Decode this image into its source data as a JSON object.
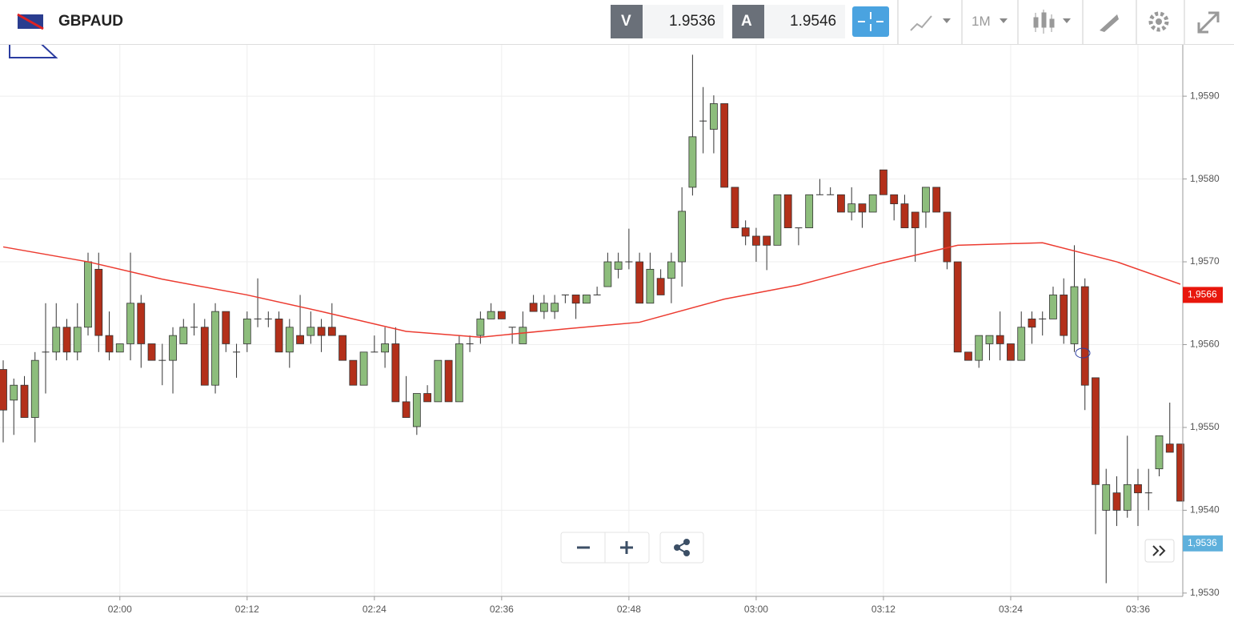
{
  "header": {
    "symbol": "GBPAUD",
    "bid_label": "V",
    "bid": "1.9536",
    "ask_label": "A",
    "ask": "1.9546",
    "interval": "1M"
  },
  "chart_data": {
    "type": "candlestick",
    "x": [
      "01:49",
      "01:50",
      "01:51",
      "01:52",
      "01:53",
      "01:54",
      "01:55",
      "01:56",
      "01:57",
      "01:58",
      "01:59",
      "02:00",
      "02:01",
      "02:02",
      "02:03",
      "02:04",
      "02:05",
      "02:06",
      "02:07",
      "02:08",
      "02:09",
      "02:10",
      "02:11",
      "02:12",
      "02:13",
      "02:14",
      "02:15",
      "02:16",
      "02:17",
      "02:18",
      "02:19",
      "02:20",
      "02:21",
      "02:22",
      "02:23",
      "02:24",
      "02:25",
      "02:26",
      "02:27",
      "02:28",
      "02:29",
      "02:30",
      "02:31",
      "02:32",
      "02:33",
      "02:34",
      "02:35",
      "02:36",
      "02:37",
      "02:38",
      "02:39",
      "02:40",
      "02:41",
      "02:42",
      "02:43",
      "02:44",
      "02:45",
      "02:46",
      "02:47",
      "02:48",
      "02:49",
      "02:50",
      "02:51",
      "02:52",
      "02:53",
      "02:54",
      "02:55",
      "02:56",
      "02:57",
      "02:58",
      "02:59",
      "03:00",
      "03:01",
      "03:02",
      "03:03",
      "03:04",
      "03:05",
      "03:06",
      "03:07",
      "03:08",
      "03:09",
      "03:10",
      "03:11",
      "03:12",
      "03:13",
      "03:14",
      "03:15",
      "03:16",
      "03:17",
      "03:18",
      "03:19",
      "03:20",
      "03:21",
      "03:22",
      "03:23",
      "03:24",
      "03:25",
      "03:26",
      "03:27",
      "03:28",
      "03:29",
      "03:30",
      "03:31",
      "03:32",
      "03:33",
      "03:34",
      "03:35",
      "03:36",
      "03:37",
      "03:38",
      "03:39",
      "03:40"
    ],
    "open": [
      1.9557,
      1.95533,
      1.95551,
      1.95512,
      1.95591,
      1.95591,
      1.95621,
      1.95591,
      1.95621,
      1.95691,
      1.95611,
      1.95591,
      1.95601,
      1.9565,
      1.95601,
      1.95581,
      1.95581,
      1.95601,
      1.95621,
      1.95621,
      1.95551,
      1.9564,
      1.95591,
      1.95601,
      1.95631,
      1.95631,
      1.95631,
      1.95591,
      1.95611,
      1.95611,
      1.95621,
      1.95621,
      1.95611,
      1.95581,
      1.95551,
      1.95591,
      1.95591,
      1.95601,
      1.95531,
      1.95501,
      1.95541,
      1.95531,
      1.95581,
      1.95531,
      1.95601,
      1.95611,
      1.95631,
      1.9564,
      1.95621,
      1.95601,
      1.9565,
      1.9564,
      1.9564,
      1.9566,
      1.9566,
      1.9565,
      1.9566,
      1.9567,
      1.95691,
      1.957,
      1.957,
      1.9565,
      1.9568,
      1.9568,
      1.957,
      1.9579,
      1.9587,
      1.9586,
      1.95891,
      1.9579,
      1.95741,
      1.95731,
      1.95731,
      1.9572,
      1.95781,
      1.95741,
      1.95741,
      1.95781,
      1.95781,
      1.95781,
      1.9576,
      1.9577,
      1.9576,
      1.95811,
      1.95781,
      1.9577,
      1.9576,
      1.9576,
      1.9579,
      1.9576,
      1.957,
      1.95591,
      1.95581,
      1.95601,
      1.95611,
      1.95601,
      1.95581,
      1.95631,
      1.95631,
      1.95631,
      1.9566,
      1.95601,
      1.9567,
      1.9556,
      1.954,
      1.95421,
      1.954,
      1.95431,
      1.95421,
      1.9545,
      1.9548,
      1.9548
    ],
    "high": [
      1.95581,
      1.95559,
      1.95562,
      1.95591,
      1.9565,
      1.9565,
      1.95631,
      1.9565,
      1.95711,
      1.95711,
      1.9564,
      1.95601,
      1.95711,
      1.9566,
      1.95601,
      1.95601,
      1.95621,
      1.95631,
      1.9565,
      1.95631,
      1.9565,
      1.9564,
      1.95601,
      1.9564,
      1.9568,
      1.9564,
      1.9564,
      1.95631,
      1.9566,
      1.9564,
      1.95631,
      1.9565,
      1.95611,
      1.95581,
      1.95591,
      1.95611,
      1.95621,
      1.95621,
      1.95562,
      1.95541,
      1.95551,
      1.95581,
      1.95581,
      1.95611,
      1.95611,
      1.9564,
      1.9565,
      1.9564,
      1.95621,
      1.9564,
      1.9566,
      1.9566,
      1.9566,
      1.9566,
      1.9566,
      1.9566,
      1.9567,
      1.95711,
      1.95711,
      1.9574,
      1.95711,
      1.95711,
      1.95691,
      1.95711,
      1.9579,
      1.9595,
      1.95911,
      1.95901,
      1.95891,
      1.9579,
      1.9575,
      1.95741,
      1.95731,
      1.95781,
      1.95781,
      1.95741,
      1.95781,
      1.958,
      1.9579,
      1.95781,
      1.9579,
      1.9577,
      1.95781,
      1.95811,
      1.95781,
      1.95781,
      1.9576,
      1.9579,
      1.9579,
      1.9576,
      1.957,
      1.95591,
      1.95611,
      1.95611,
      1.9564,
      1.95601,
      1.9564,
      1.9564,
      1.9564,
      1.9567,
      1.9568,
      1.9572,
      1.9568,
      1.9556,
      1.9545,
      1.95441,
      1.9549,
      1.9545,
      1.9545,
      1.9549,
      1.9553,
      1.9548
    ],
    "low": [
      1.95482,
      1.95491,
      1.95512,
      1.95482,
      1.95541,
      1.95581,
      1.95581,
      1.95581,
      1.95611,
      1.95591,
      1.95581,
      1.95591,
      1.95581,
      1.95572,
      1.95581,
      1.95551,
      1.95541,
      1.95601,
      1.95611,
      1.95551,
      1.95541,
      1.95591,
      1.9556,
      1.95591,
      1.95621,
      1.95621,
      1.95591,
      1.95572,
      1.95601,
      1.95601,
      1.95591,
      1.95611,
      1.95581,
      1.95551,
      1.95551,
      1.95591,
      1.95572,
      1.95531,
      1.95512,
      1.95491,
      1.95531,
      1.95531,
      1.95531,
      1.95531,
      1.95591,
      1.95601,
      1.95631,
      1.95631,
      1.95601,
      1.95601,
      1.9564,
      1.95631,
      1.95631,
      1.9565,
      1.95631,
      1.9565,
      1.9566,
      1.9567,
      1.9568,
      1.95691,
      1.9565,
      1.9565,
      1.9566,
      1.9565,
      1.9567,
      1.9578,
      1.95831,
      1.95831,
      1.9579,
      1.95741,
      1.9572,
      1.957,
      1.9569,
      1.9572,
      1.95741,
      1.9572,
      1.95741,
      1.95781,
      1.95781,
      1.9576,
      1.9575,
      1.95741,
      1.9576,
      1.95781,
      1.9575,
      1.95741,
      1.957,
      1.95741,
      1.9576,
      1.95691,
      1.95591,
      1.95581,
      1.95572,
      1.95581,
      1.95581,
      1.95581,
      1.95581,
      1.95601,
      1.95611,
      1.95631,
      1.95601,
      1.95591,
      1.95521,
      1.95371,
      1.95312,
      1.95381,
      1.95391,
      1.95381,
      1.954,
      1.95441,
      1.9547,
      1.95411
    ],
    "close": [
      1.95521,
      1.95551,
      1.95512,
      1.95581,
      1.95591,
      1.95621,
      1.95591,
      1.95621,
      1.957,
      1.95611,
      1.95591,
      1.95601,
      1.9565,
      1.95601,
      1.95581,
      1.95581,
      1.95611,
      1.95621,
      1.95621,
      1.95551,
      1.9564,
      1.95601,
      1.95591,
      1.95631,
      1.95631,
      1.95631,
      1.95591,
      1.95621,
      1.95601,
      1.95621,
      1.95611,
      1.95611,
      1.95581,
      1.95551,
      1.95591,
      1.95591,
      1.95601,
      1.95531,
      1.95512,
      1.95541,
      1.95531,
      1.95581,
      1.95531,
      1.95601,
      1.95601,
      1.95631,
      1.9564,
      1.95631,
      1.95621,
      1.95621,
      1.9564,
      1.9565,
      1.9565,
      1.9566,
      1.9565,
      1.9566,
      1.9566,
      1.957,
      1.957,
      1.957,
      1.9565,
      1.95691,
      1.9566,
      1.957,
      1.95761,
      1.95851,
      1.9587,
      1.95891,
      1.9579,
      1.95741,
      1.95731,
      1.9572,
      1.9572,
      1.95781,
      1.95741,
      1.95741,
      1.95781,
      1.95781,
      1.95781,
      1.9576,
      1.9577,
      1.9576,
      1.95781,
      1.95781,
      1.9577,
      1.95741,
      1.95741,
      1.9579,
      1.9576,
      1.957,
      1.95591,
      1.95581,
      1.95611,
      1.95611,
      1.95601,
      1.95581,
      1.95621,
      1.95621,
      1.95631,
      1.9566,
      1.95611,
      1.9567,
      1.95551,
      1.95431,
      1.95431,
      1.954,
      1.95431,
      1.95421,
      1.95421,
      1.9549,
      1.9547,
      1.95411
    ],
    "up_color": "#8dbd7c",
    "down_color": "#b3301a",
    "ma": {
      "color": "#ec3b30",
      "x": [
        "01:49",
        "01:57",
        "02:04",
        "02:12",
        "02:19",
        "02:27",
        "02:34",
        "02:42",
        "02:49",
        "02:57",
        "03:04",
        "03:12",
        "03:19",
        "03:27",
        "03:34",
        "03:40"
      ],
      "values": [
        1.95718,
        1.957,
        1.95679,
        1.9566,
        1.9564,
        1.95616,
        1.95609,
        1.95619,
        1.95627,
        1.95655,
        1.95672,
        1.95699,
        1.9572,
        1.95723,
        1.957,
        1.95673
      ]
    },
    "price_tags": [
      {
        "value": 1.9566,
        "label": "1,9566",
        "color": "#e8160c"
      },
      {
        "value": 1.9536,
        "label": "1,9536",
        "color": "#5eb0dc"
      }
    ],
    "xlim": [
      "01:49",
      "03:40"
    ],
    "xticks": [
      "02:00",
      "02:12",
      "02:24",
      "02:36",
      "02:48",
      "03:00",
      "03:12",
      "03:24",
      "03:36"
    ],
    "ylim": [
      1.95296,
      1.95962
    ],
    "yticks": [
      {
        "value": 1.953,
        "label": "1,9530"
      },
      {
        "value": 1.954,
        "label": "1,9540"
      },
      {
        "value": 1.955,
        "label": "1,9550"
      },
      {
        "value": 1.956,
        "label": "1,9560"
      },
      {
        "value": 1.957,
        "label": "1,9570"
      },
      {
        "value": 1.958,
        "label": "1,9580"
      },
      {
        "value": 1.959,
        "label": "1,9590"
      }
    ],
    "grid": true
  }
}
